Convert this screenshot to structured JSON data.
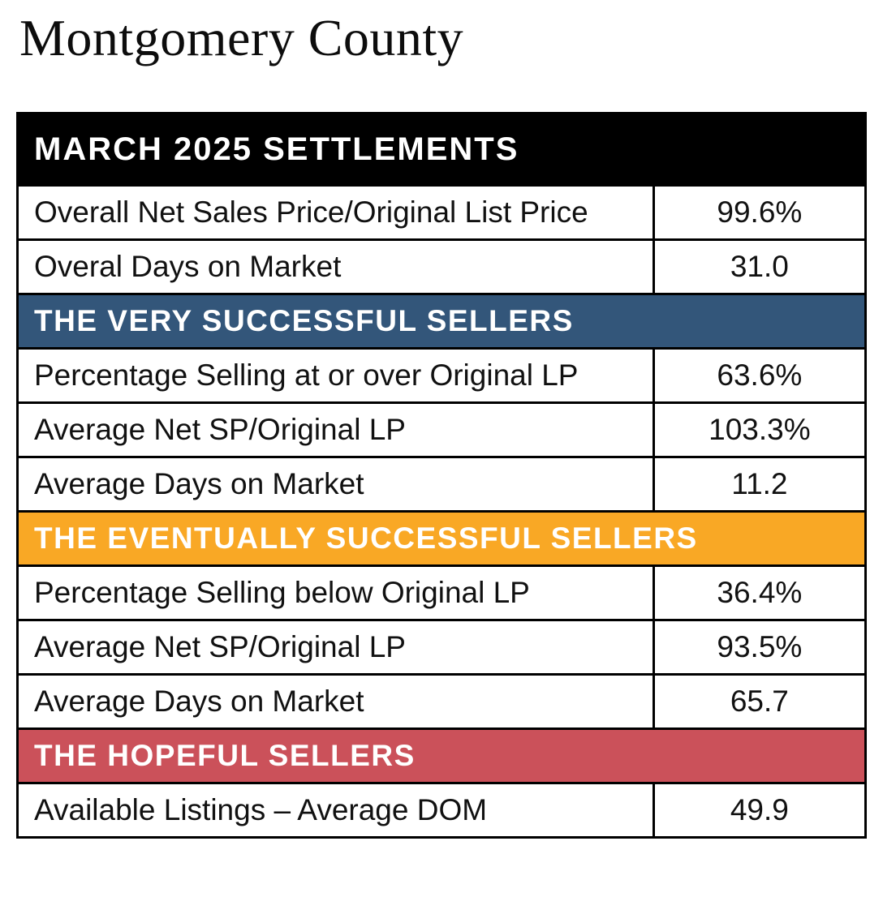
{
  "title": "Montgomery County",
  "colors": {
    "black_header_bg": "#000000",
    "blue_header_bg": "#33567A",
    "orange_header_bg": "#F9A825",
    "red_header_bg": "#CB515A",
    "header_text": "#FFFFFF",
    "row_text": "#111111",
    "border": "#000000",
    "page_bg": "#FFFFFF"
  },
  "table": {
    "sections": [
      {
        "label": "MARCH 2025 SETTLEMENTS",
        "rows": [
          {
            "metric": "Overall Net Sales Price/Original List Price",
            "value": "99.6%"
          },
          {
            "metric": "Overal Days on Market",
            "value": "31.0"
          }
        ]
      },
      {
        "label": "THE VERY SUCCESSFUL SELLERS",
        "rows": [
          {
            "metric": "Percentage Selling at or over Original LP",
            "value": "63.6%"
          },
          {
            "metric": "Average Net SP/Original LP",
            "value": "103.3%"
          },
          {
            "metric": "Average Days on Market",
            "value": "11.2"
          }
        ]
      },
      {
        "label": "THE EVENTUALLY SUCCESSFUL SELLERS",
        "rows": [
          {
            "metric": "Percentage Selling below Original LP",
            "value": "36.4%"
          },
          {
            "metric": "Average Net SP/Original LP",
            "value": "93.5%"
          },
          {
            "metric": "Average Days on Market",
            "value": "65.7"
          }
        ]
      },
      {
        "label": "THE HOPEFUL SELLERS",
        "rows": [
          {
            "metric": "Available Listings – Average DOM",
            "value": "49.9"
          }
        ]
      }
    ]
  }
}
